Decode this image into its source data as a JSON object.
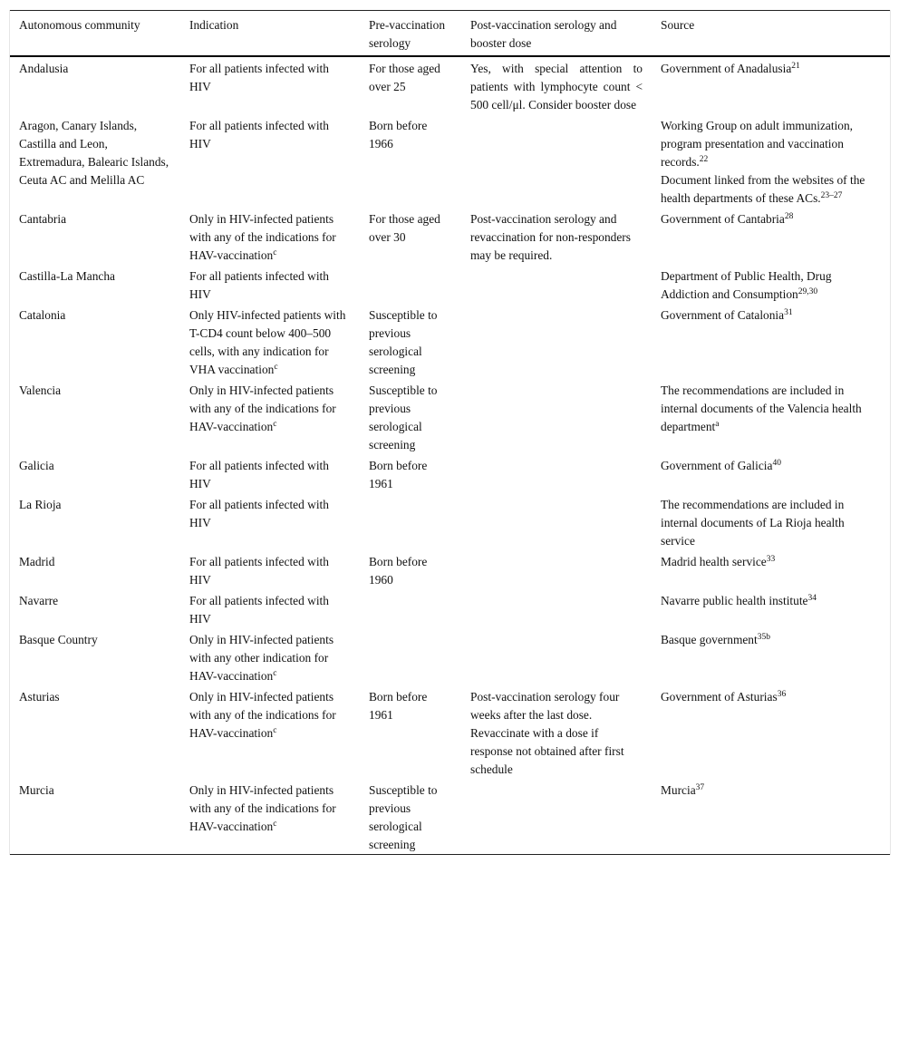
{
  "headers": [
    "Autonomous community",
    "Indication",
    "Pre-vaccination serology",
    "Post-vaccination serology and booster dose",
    "Source"
  ],
  "rows": [
    {
      "community": [
        {
          "t": "Andalusia"
        }
      ],
      "indication": [
        {
          "t": "For all patients infected with HIV"
        }
      ],
      "pre": [
        {
          "t": "For those aged over 25"
        }
      ],
      "post": [
        {
          "t": "Yes, with special attention to patients with lymphocyte count < 500 cell/μl. Consider booster dose"
        }
      ],
      "source": [
        {
          "t": "Government of Anadalusia"
        },
        {
          "sup": "21"
        }
      ]
    },
    {
      "community": [
        {
          "t": "Aragon, Canary Islands, Castilla and Leon, Extremadura, Balearic Islands, Ceuta AC and Melilla AC"
        }
      ],
      "indication": [
        {
          "t": "For all patients infected with HIV"
        }
      ],
      "pre": [
        {
          "t": "Born before 1966"
        }
      ],
      "post": [],
      "source": [
        {
          "t": "Working Group on adult immunization, program presentation and vaccination records."
        },
        {
          "sup": "22"
        },
        {
          "br": true
        },
        {
          "t": "Document linked from the websites of the health departments of these ACs."
        },
        {
          "sup": "23–27"
        }
      ]
    },
    {
      "community": [
        {
          "t": "Cantabria"
        }
      ],
      "indication": [
        {
          "t": "Only in HIV-infected patients with any of the indications for HAV-vaccination"
        },
        {
          "sup": "c"
        }
      ],
      "pre": [
        {
          "t": "For those aged over 30"
        }
      ],
      "post": [
        {
          "t": "Post-vaccination serology and revaccination for non-responders may be required."
        }
      ],
      "source": [
        {
          "t": "Government of Cantabria"
        },
        {
          "sup": "28"
        }
      ]
    },
    {
      "community": [
        {
          "t": "Castilla-La Mancha"
        }
      ],
      "indication": [
        {
          "t": "For all patients infected with HIV"
        }
      ],
      "pre": [],
      "post": [],
      "source": [
        {
          "t": "Department of Public Health, Drug Addiction and Consumption"
        },
        {
          "sup": "29,30"
        }
      ]
    },
    {
      "community": [
        {
          "t": "Catalonia"
        }
      ],
      "indication": [
        {
          "t": "Only HIV-infected patients with T-CD4 count below 400–500 cells, with any indication for VHA vaccination"
        },
        {
          "sup": "c"
        }
      ],
      "pre": [
        {
          "t": "Susceptible to previous serological screening"
        }
      ],
      "post": [],
      "source": [
        {
          "t": "Government of Catalonia"
        },
        {
          "sup": "31"
        }
      ]
    },
    {
      "community": [
        {
          "t": "Valencia"
        }
      ],
      "indication": [
        {
          "t": "Only in HIV-infected patients with any of the indications for HAV-vaccination"
        },
        {
          "sup": "c"
        }
      ],
      "pre": [
        {
          "t": "Susceptible to previous serological screening"
        }
      ],
      "post": [],
      "source": [
        {
          "t": "The recommendations are included in internal documents of the Valencia health department"
        },
        {
          "sup": "a"
        }
      ]
    },
    {
      "community": [
        {
          "t": "Galicia"
        }
      ],
      "indication": [
        {
          "t": "For all patients infected with HIV"
        }
      ],
      "pre": [
        {
          "t": "Born before 1961"
        }
      ],
      "post": [],
      "source": [
        {
          "t": "Government of Galicia"
        },
        {
          "sup": "40"
        }
      ]
    },
    {
      "community": [
        {
          "t": "La Rioja"
        }
      ],
      "indication": [
        {
          "t": "For all patients infected with HIV"
        }
      ],
      "pre": [],
      "post": [],
      "source": [
        {
          "t": "The recommendations are included in internal documents of La Rioja health service"
        }
      ]
    },
    {
      "community": [
        {
          "t": "Madrid"
        }
      ],
      "indication": [
        {
          "t": "For all patients infected with HIV"
        }
      ],
      "pre": [
        {
          "t": "Born before 1960"
        }
      ],
      "post": [],
      "source": [
        {
          "t": "Madrid health service"
        },
        {
          "sup": "33"
        }
      ]
    },
    {
      "community": [
        {
          "t": "Navarre"
        }
      ],
      "indication": [
        {
          "t": "For all patients infected with HIV"
        }
      ],
      "pre": [],
      "post": [],
      "source": [
        {
          "t": "Navarre public health institute"
        },
        {
          "sup": "34"
        }
      ]
    },
    {
      "community": [
        {
          "t": "Basque Country"
        }
      ],
      "indication": [
        {
          "t": "Only in HIV-infected patients with any other indication for HAV-vaccination"
        },
        {
          "sup": "c"
        }
      ],
      "pre": [],
      "post": [],
      "source": [
        {
          "t": "Basque government"
        },
        {
          "sup": "35b"
        }
      ]
    },
    {
      "community": [
        {
          "t": "Asturias"
        }
      ],
      "indication": [
        {
          "t": "Only in HIV-infected patients with any of the indications for HAV-vaccination"
        },
        {
          "sup": "c"
        }
      ],
      "pre": [
        {
          "t": "Born before 1961"
        }
      ],
      "post": [
        {
          "t": "Post-vaccination serology four weeks after the last dose. Revaccinate with a dose if response not obtained after first schedule"
        }
      ],
      "source": [
        {
          "t": "Government of Asturias"
        },
        {
          "sup": "36"
        }
      ]
    },
    {
      "community": [
        {
          "t": "Murcia"
        }
      ],
      "indication": [
        {
          "t": "Only in HIV-infected patients with any of the indications for HAV-vaccination"
        },
        {
          "sup": "c"
        }
      ],
      "pre": [
        {
          "t": "Susceptible to previous serological screening"
        }
      ],
      "post": [],
      "source": [
        {
          "t": "Murcia"
        },
        {
          "sup": "37"
        }
      ]
    }
  ]
}
